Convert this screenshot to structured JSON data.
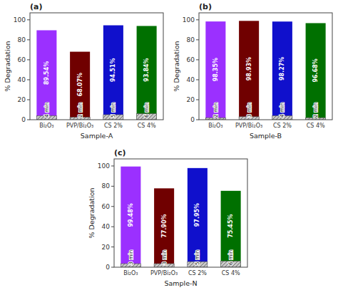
{
  "chart_data": [
    {
      "type": "bar",
      "title": "(a)",
      "x_label": "Sample-A",
      "y_label": "% Degradation",
      "categories": [
        "Bi₂O₃",
        "PVP/Bi₂O₃",
        "CS 2%",
        "CS 4%"
      ],
      "series": [
        {
          "values": [
            89.54,
            68.07,
            94.51,
            93.84
          ],
          "colors": [
            "#9B30FF",
            "#700000",
            "#1010CC",
            "#007000"
          ],
          "data_labels": true,
          "value_labels": [
            "89.54%",
            "68.07%",
            "94.51%",
            "93.84%"
          ]
        },
        {
          "values": [
            4.0,
            2.5,
            5.0,
            6.0
          ],
          "color": "#c8c8c8",
          "annotations": [
            "4 min",
            "2 min",
            "5 min",
            "6 min"
          ]
        }
      ],
      "ylim": [
        0,
        107
      ],
      "yticks": [
        0,
        20,
        40,
        60,
        80,
        100
      ],
      "grid": false
    },
    {
      "type": "bar",
      "title": "(b)",
      "x_label": "Sample-B",
      "y_label": "% Degradation",
      "categories": [
        "Bi₂O₃",
        "PVP/Bi₂O₃",
        "CS 2%",
        "CS 4%"
      ],
      "series": [
        {
          "values": [
            98.35,
            98.93,
            98.27,
            96.68
          ],
          "colors": [
            "#9B30FF",
            "#700000",
            "#1010CC",
            "#007000"
          ],
          "data_labels": true,
          "value_labels": [
            "98.35%",
            "98.93%",
            "98.27%",
            "96.68%"
          ]
        },
        {
          "values": [
            2.0,
            3.0,
            4.0,
            2.0
          ],
          "color": "#c8c8c8",
          "annotations": [
            "2 min",
            "3 min",
            "4 min",
            "2 min"
          ]
        }
      ],
      "ylim": [
        0,
        107
      ],
      "yticks": [
        0,
        20,
        40,
        60,
        80,
        100
      ],
      "grid": false
    },
    {
      "type": "bar",
      "title": "(c)",
      "x_label": "Sample-N",
      "y_label": "% Degradation",
      "categories": [
        "Bi₂O₃",
        "PVP/Bi₂O₃",
        "CS 2%",
        "CS 4%"
      ],
      "series": [
        {
          "values": [
            99.48,
            77.9,
            97.95,
            75.45
          ],
          "colors": [
            "#9B30FF",
            "#700000",
            "#1010CC",
            "#007000"
          ],
          "data_labels": true,
          "value_labels": [
            "99.48%",
            "77.90%",
            "97.95%",
            "75.45%"
          ]
        },
        {
          "values": [
            3.5,
            3.5,
            5.5,
            6.0
          ],
          "color": "#c8c8c8",
          "annotations": [
            "3 min",
            "3 min",
            "5 min",
            "6 min"
          ]
        }
      ],
      "ylim": [
        0,
        107
      ],
      "yticks": [
        0,
        20,
        40,
        60,
        80,
        100
      ],
      "grid": false
    }
  ]
}
